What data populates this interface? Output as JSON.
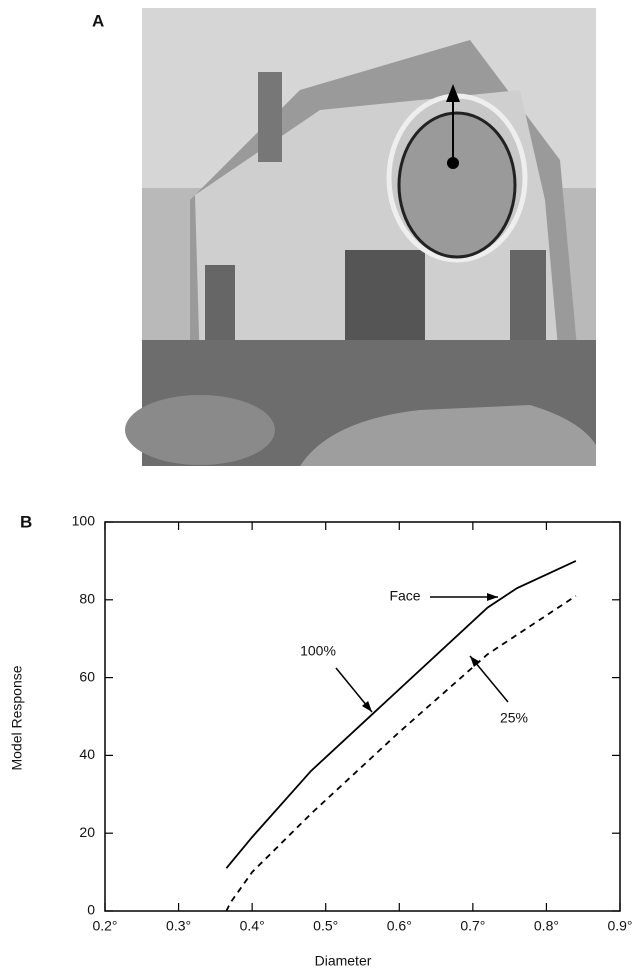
{
  "panel_a": {
    "label": "A"
  },
  "chart_data": {
    "type": "line",
    "panel_label": "B",
    "xlabel": "Diameter",
    "ylabel": "Model Response",
    "xlim": [
      0.2,
      0.9
    ],
    "xticks": [
      {
        "value": 0.2,
        "label": "0.2°"
      },
      {
        "value": 0.3,
        "label": "0.3°"
      },
      {
        "value": 0.4,
        "label": "0.4°"
      },
      {
        "value": 0.5,
        "label": "0.5°"
      },
      {
        "value": 0.6,
        "label": "0.6°"
      },
      {
        "value": 0.7,
        "label": "0.7°"
      },
      {
        "value": 0.8,
        "label": "0.8°"
      },
      {
        "value": 0.9,
        "label": "0.9°"
      }
    ],
    "ylim": [
      0,
      100
    ],
    "yticks": [
      0,
      20,
      40,
      60,
      80,
      100
    ],
    "series": [
      {
        "name": "100%",
        "color": "#000000",
        "dashed": false,
        "x": [
          0.365,
          0.4,
          0.48,
          0.6,
          0.72,
          0.76,
          0.84
        ],
        "values": [
          11,
          19,
          36,
          57,
          78,
          83,
          90
        ]
      },
      {
        "name": "25%",
        "color": "#000000",
        "dashed": true,
        "x": [
          0.365,
          0.37,
          0.4,
          0.48,
          0.6,
          0.72,
          0.76,
          0.84
        ],
        "values": [
          0,
          2,
          10,
          25,
          46,
          66,
          71,
          81
        ]
      }
    ],
    "annotations": [
      "Face"
    ]
  }
}
